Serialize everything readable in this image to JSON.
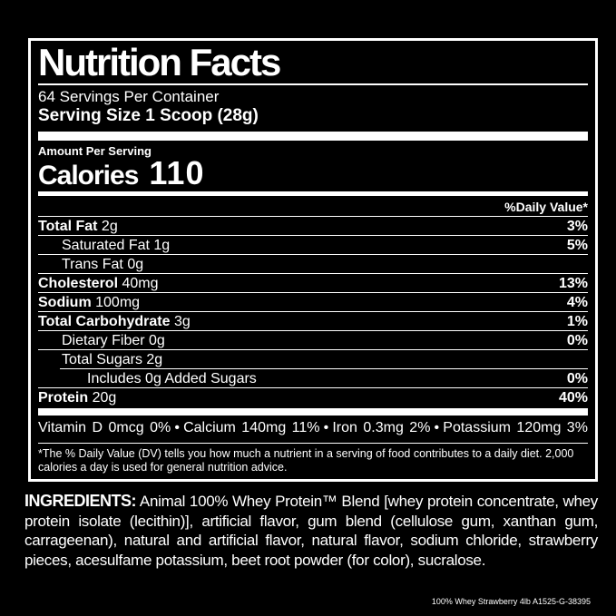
{
  "page": {
    "background_color": "#000000",
    "text_color": "#ffffff"
  },
  "label": {
    "title": "Nutrition Facts",
    "servings_per_container": "64 Servings Per Container",
    "serving_size": "Serving Size 1 Scoop (28g)",
    "amount_per_serving": "Amount Per Serving",
    "calories_label": "Calories",
    "calories_value": "110",
    "daily_value_header": "%Daily Value*",
    "nutrient_rows": [
      {
        "name": "Total Fat",
        "amount": "2g",
        "percent": "3%",
        "bold": true,
        "indent": 0
      },
      {
        "name": "Saturated Fat",
        "amount": "1g",
        "percent": "5%",
        "bold": false,
        "indent": 1
      },
      {
        "name": "Trans Fat",
        "amount": "0g",
        "percent": "",
        "bold": false,
        "indent": 1
      },
      {
        "name": "Cholesterol",
        "amount": "40mg",
        "percent": "13%",
        "bold": true,
        "indent": 0
      },
      {
        "name": "Sodium",
        "amount": "100mg",
        "percent": "4%",
        "bold": true,
        "indent": 0
      },
      {
        "name": "Total Carbohydrate",
        "amount": "3g",
        "percent": "1%",
        "bold": true,
        "indent": 0
      },
      {
        "name": "Dietary Fiber",
        "amount": "0g",
        "percent": "0%",
        "bold": false,
        "indent": 1
      },
      {
        "name": "Total Sugars",
        "amount": "2g",
        "percent": "",
        "bold": false,
        "indent": 1
      },
      {
        "name": "Includes 0g Added Sugars",
        "amount": "",
        "percent": "0%",
        "bold": false,
        "indent": 2,
        "rule_indent": true
      },
      {
        "name": "Protein",
        "amount": "20g",
        "percent": "40%",
        "bold": true,
        "indent": 0
      }
    ],
    "micronutrients": [
      "Vitamin D 0mcg 0%",
      "Calcium 140mg 11%",
      "Iron 0.3mg 2%",
      "Potassium 120mg 3%"
    ],
    "micronutrient_separator": "•",
    "footnote": "*The % Daily Value (DV) tells you how much a nutrient in a serving of food contributes to a daily diet. 2,000 calories a day is used for general nutrition advice."
  },
  "ingredients": {
    "heading": "INGREDIENTS:",
    "text": " Animal 100% Whey Protein™ Blend [whey protein concentrate, whey protein isolate (lecithin)], artificial flavor, gum blend (cellulose gum, xanthan gum, carrageenan), natural and artificial flavor, natural flavor, sodium chloride, strawberry pieces, acesulfame potassium, beet root powder (for color), sucralose."
  },
  "footer": {
    "product_code": "100% Whey Strawberry 4lb A1525-G-38395"
  }
}
